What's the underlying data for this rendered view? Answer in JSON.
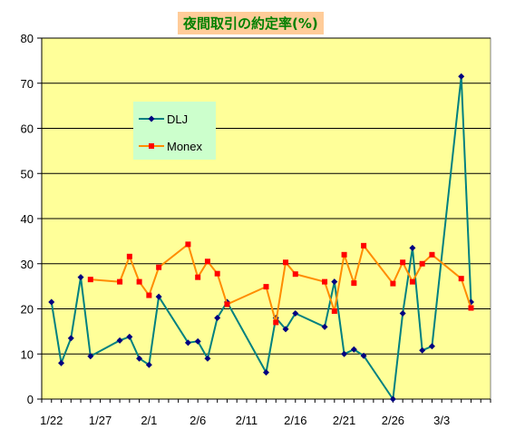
{
  "chart_data": {
    "type": "line",
    "title": "夜間取引の約定率(%)",
    "xlabel": "",
    "ylabel": "",
    "ylim": [
      0,
      80
    ],
    "yticks": [
      0,
      10,
      20,
      30,
      40,
      50,
      60,
      70,
      80
    ],
    "xlim": [
      "1/21",
      "3/8"
    ],
    "xticks": [
      "1/22",
      "1/27",
      "2/1",
      "2/6",
      "2/11",
      "2/16",
      "2/21",
      "2/26",
      "3/3"
    ],
    "grid": "horizontal",
    "legend_position": "upper-left",
    "plot_background": "#ffff99",
    "series": [
      {
        "name": "DLJ",
        "color": "#008080",
        "marker_color": "#000080",
        "marker": "diamond",
        "x": [
          "1/22",
          "1/23",
          "1/24",
          "1/25",
          "1/26",
          "1/29",
          "1/30",
          "1/31",
          "2/1",
          "2/2",
          "2/5",
          "2/6",
          "2/7",
          "2/8",
          "2/9",
          "2/13",
          "2/14",
          "2/15",
          "2/16",
          "2/19",
          "2/20",
          "2/21",
          "2/22",
          "2/23",
          "2/26",
          "2/27",
          "2/28",
          "3/1",
          "3/2",
          "3/5",
          "3/6"
        ],
        "values": [
          21.5,
          8,
          13.5,
          27,
          9.5,
          13,
          13.8,
          9,
          7.6,
          22.7,
          12.5,
          12.8,
          9,
          18,
          21.5,
          5.9,
          18,
          15.5,
          19,
          16,
          26,
          10,
          11,
          9.6,
          0,
          19,
          33.5,
          10.8,
          11.7,
          71.5,
          21.5
        ]
      },
      {
        "name": "Monex",
        "color": "#ff8c00",
        "marker_color": "#ff0000",
        "marker": "square",
        "x": [
          "1/26",
          "1/29",
          "1/30",
          "1/31",
          "2/1",
          "2/2",
          "2/5",
          "2/6",
          "2/7",
          "2/8",
          "2/9",
          "2/13",
          "2/14",
          "2/15",
          "2/16",
          "2/19",
          "2/20",
          "2/21",
          "2/22",
          "2/23",
          "2/26",
          "2/27",
          "2/28",
          "3/1",
          "3/2",
          "3/5",
          "3/6"
        ],
        "values": [
          26.5,
          26,
          31.6,
          26,
          23,
          29.2,
          34.3,
          27,
          30.5,
          27.8,
          21,
          24.9,
          17,
          30.3,
          27.7,
          26,
          19.5,
          32,
          25.7,
          34,
          25.6,
          30.3,
          26,
          30,
          32,
          26.7,
          20.2
        ]
      }
    ]
  }
}
